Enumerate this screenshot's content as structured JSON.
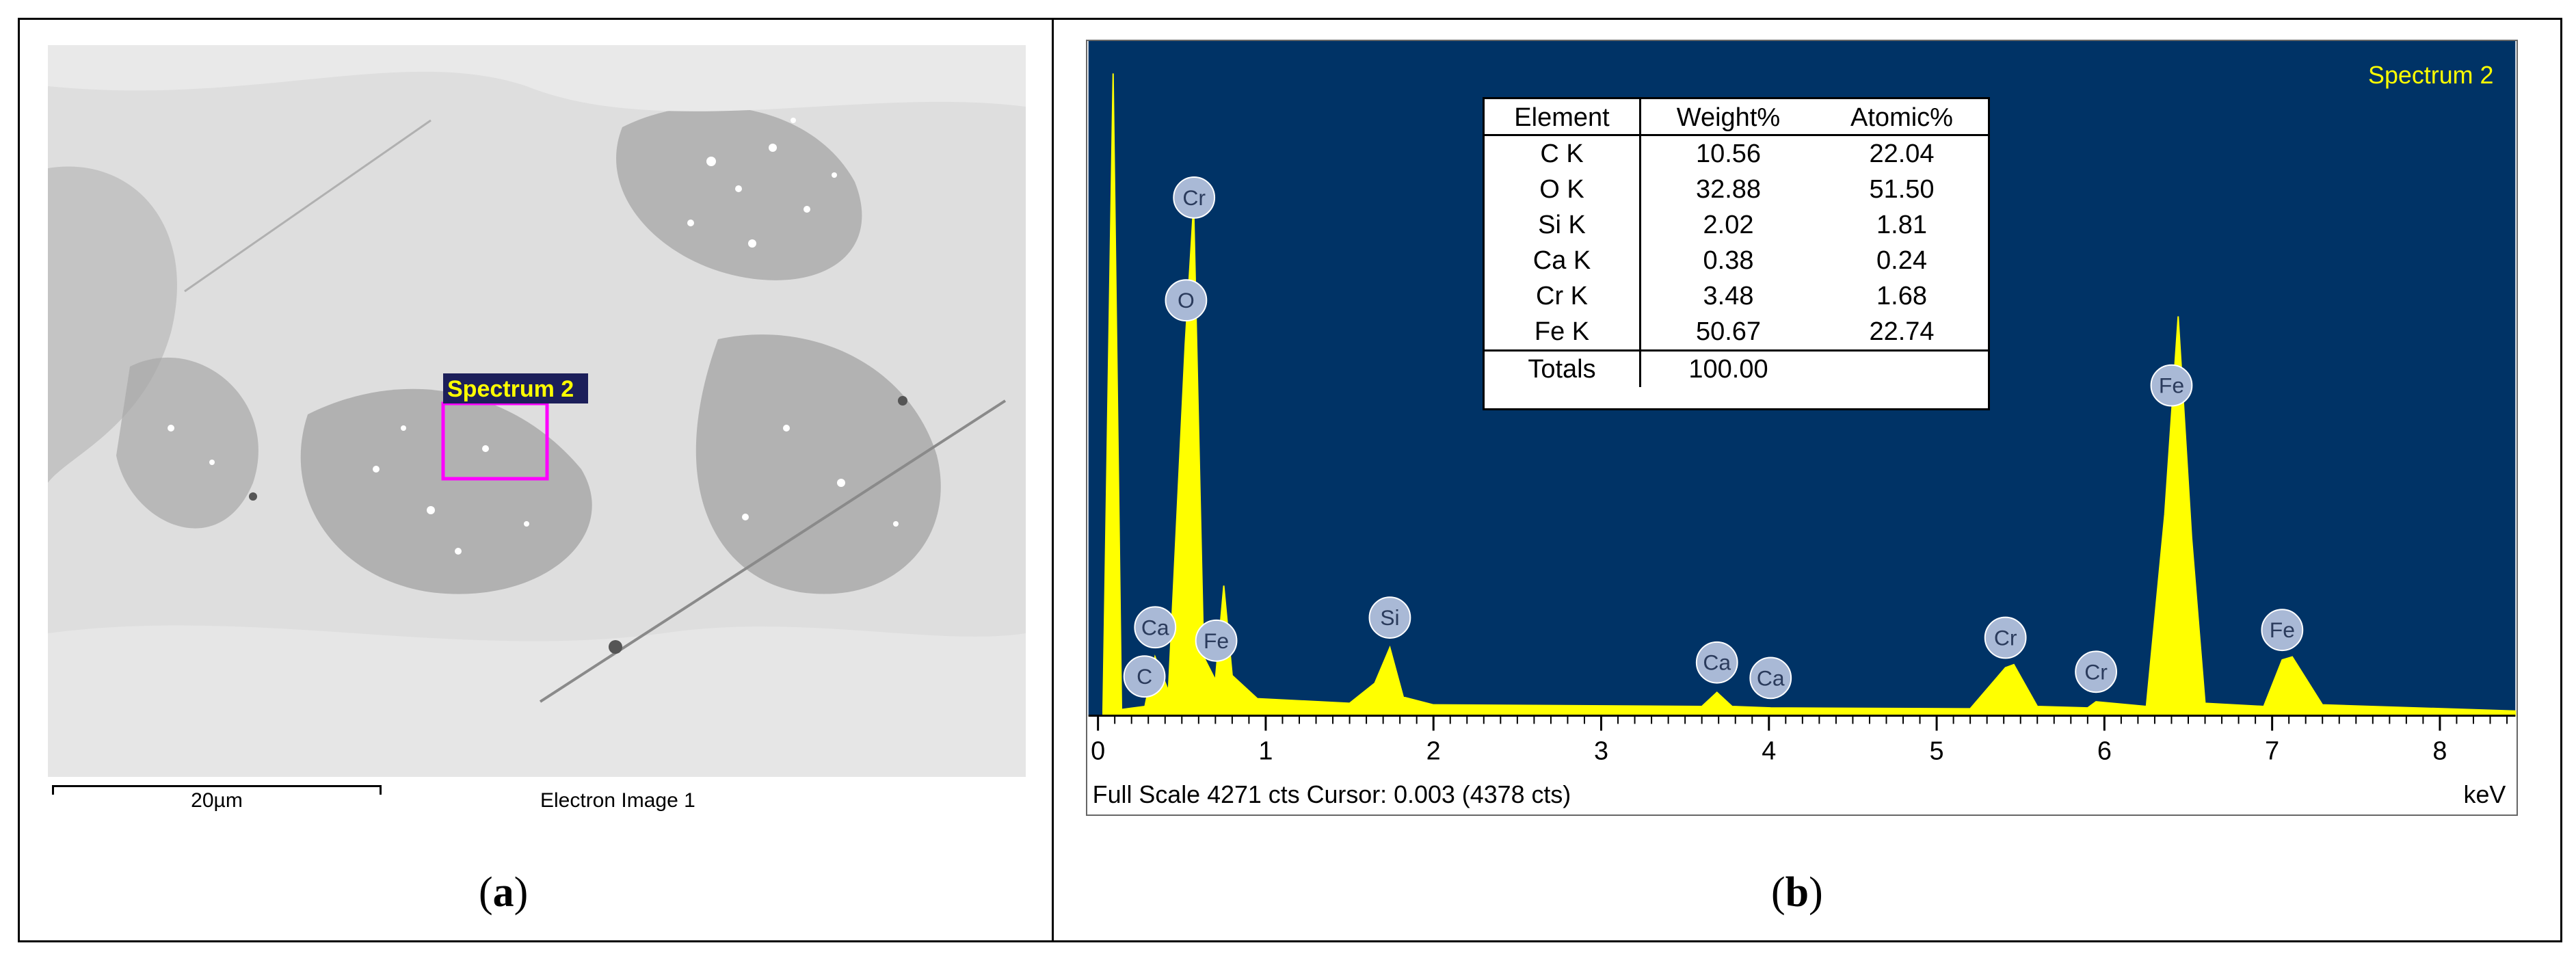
{
  "panel_a": {
    "scale_bar_label": "20µm",
    "image_caption": "Electron Image 1",
    "spectrum_box_label": "Spectrum 2",
    "panel_label_open": "(",
    "panel_label_letter": "a",
    "panel_label_close": ")"
  },
  "panel_b": {
    "spectrum_title": "Spectrum 2",
    "footer_left": "Full Scale 4271 cts Cursor: 0.003  (4378 cts)",
    "footer_right": "keV",
    "panel_label_open": "(",
    "panel_label_letter": "b",
    "panel_label_close": ")",
    "colors": {
      "background": "#003366",
      "trace": "#ffff00",
      "peak_label_fill": "#a9b9d6"
    }
  },
  "table": {
    "headers": [
      "Element",
      "Weight%",
      "Atomic%"
    ],
    "rows": [
      [
        "C K",
        "10.56",
        "22.04"
      ],
      [
        "O K",
        "32.88",
        "51.50"
      ],
      [
        "Si K",
        "2.02",
        "1.81"
      ],
      [
        "Ca K",
        "0.38",
        "0.24"
      ],
      [
        "Cr K",
        "3.48",
        "1.68"
      ],
      [
        "Fe K",
        "50.67",
        "22.74"
      ]
    ],
    "totals": [
      "Totals",
      "100.00",
      ""
    ]
  },
  "chart_data": {
    "type": "area",
    "title": "Spectrum 2",
    "xlabel": "keV",
    "xlim": [
      0,
      8.45
    ],
    "ylim": [
      0,
      4271
    ],
    "x_ticks": [
      "0",
      "1",
      "2",
      "3",
      "4",
      "5",
      "6",
      "7",
      "8"
    ],
    "series": [
      {
        "x": [
          0.03,
          0.09,
          0.14,
          0.28,
          0.34,
          0.42,
          0.52,
          0.57,
          0.63,
          0.7,
          0.75,
          0.8,
          0.95,
          1.5,
          1.65,
          1.74,
          1.82,
          2.0,
          3.6,
          3.69,
          3.78,
          4.01,
          5.2,
          5.41,
          5.46,
          5.6,
          5.9,
          5.95,
          6.25,
          6.36,
          6.44,
          6.52,
          6.6,
          6.95,
          7.06,
          7.12,
          7.3,
          8.45
        ],
        "y": [
          40,
          4150,
          40,
          60,
          380,
          160,
          2400,
          3300,
          380,
          230,
          840,
          260,
          110,
          80,
          210,
          440,
          120,
          70,
          60,
          150,
          60,
          50,
          45,
          310,
          330,
          60,
          50,
          90,
          60,
          1300,
          2580,
          1150,
          80,
          60,
          360,
          380,
          70,
          30
        ]
      }
    ],
    "peak_labels": [
      {
        "element": "C",
        "x": 0.277
      },
      {
        "element": "Ca",
        "x": 0.341
      },
      {
        "element": "O",
        "x": 0.525
      },
      {
        "element": "Cr",
        "x": 0.573
      },
      {
        "element": "Fe",
        "x": 0.705
      },
      {
        "element": "Si",
        "x": 1.74
      },
      {
        "element": "Ca",
        "x": 3.69
      },
      {
        "element": "Ca",
        "x": 4.01
      },
      {
        "element": "Cr",
        "x": 5.41
      },
      {
        "element": "Cr",
        "x": 5.95
      },
      {
        "element": "Fe",
        "x": 6.4
      },
      {
        "element": "Fe",
        "x": 7.06
      }
    ]
  }
}
